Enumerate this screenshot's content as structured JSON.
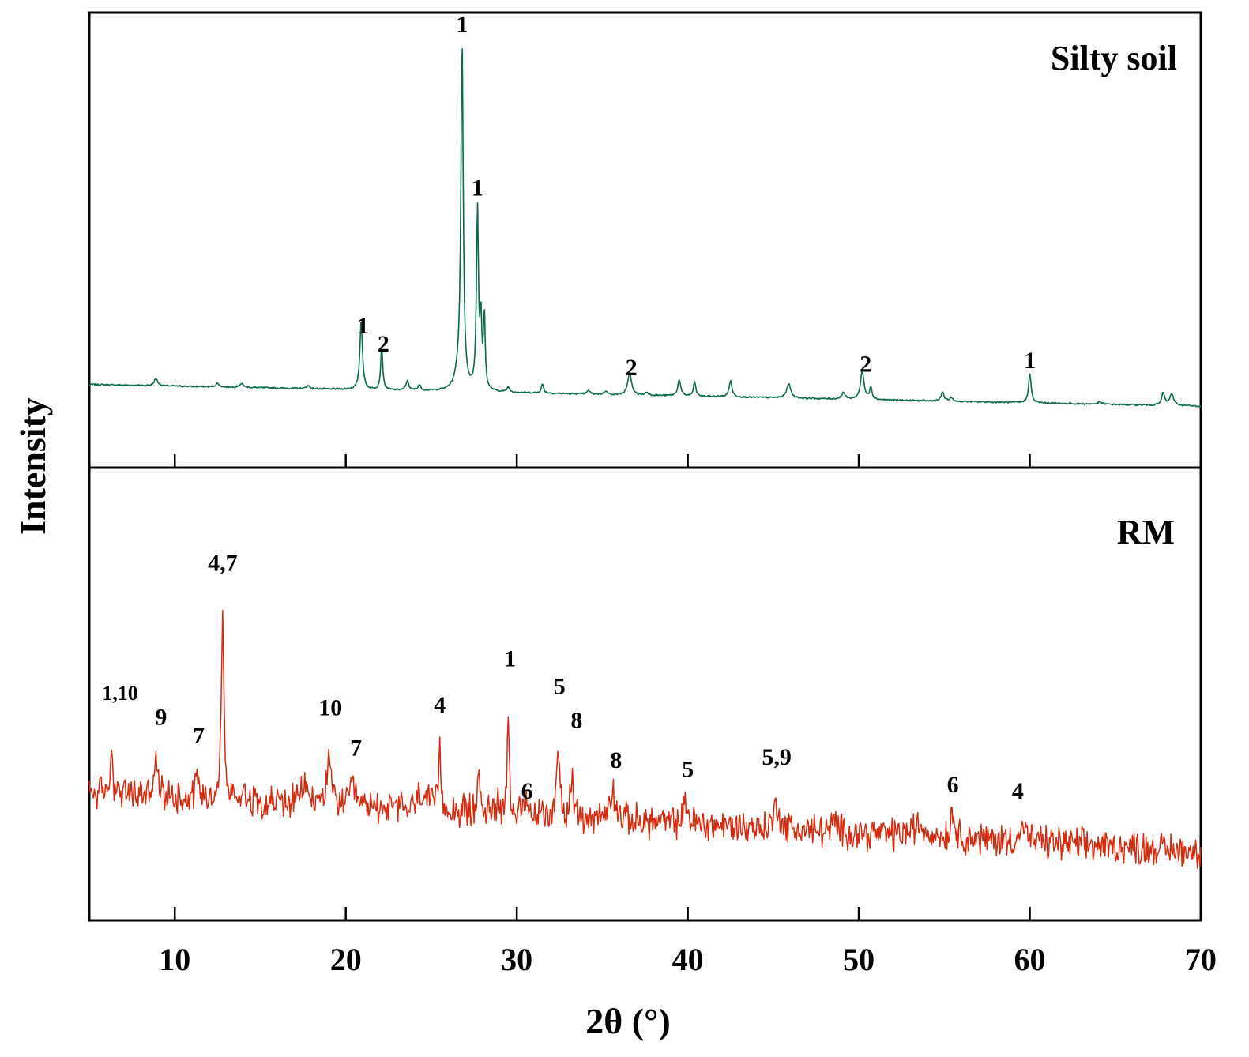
{
  "chart_data": {
    "type": "line",
    "xlabel": "2θ (°)",
    "ylabel": "Intensity",
    "xlim": [
      5,
      70
    ],
    "x_ticks": [
      10,
      20,
      30,
      40,
      50,
      60,
      70
    ],
    "panels": [
      {
        "name": "Silty soil",
        "title": "Silty soil",
        "color": "#0b6b45",
        "ylim": [
          0,
          100
        ],
        "baseline_start": 9,
        "baseline_end": 3,
        "peaks": [
          {
            "x": 8.9,
            "h": 2,
            "w": 0.12
          },
          {
            "x": 12.5,
            "h": 1,
            "w": 0.12
          },
          {
            "x": 13.9,
            "h": 1,
            "w": 0.15
          },
          {
            "x": 17.8,
            "h": 0.8,
            "w": 0.12
          },
          {
            "x": 20.9,
            "h": 19,
            "w": 0.09
          },
          {
            "x": 22.1,
            "h": 12,
            "w": 0.07
          },
          {
            "x": 23.6,
            "h": 2.5,
            "w": 0.1
          },
          {
            "x": 24.3,
            "h": 1.5,
            "w": 0.1
          },
          {
            "x": 26.6,
            "h": 4,
            "w": 0.25
          },
          {
            "x": 26.8,
            "h": 95,
            "w": 0.08
          },
          {
            "x": 27.7,
            "h": 50,
            "w": 0.07
          },
          {
            "x": 27.9,
            "h": 18,
            "w": 0.06
          },
          {
            "x": 28.1,
            "h": 21,
            "w": 0.06
          },
          {
            "x": 29.5,
            "h": 1.5,
            "w": 0.08
          },
          {
            "x": 31.5,
            "h": 2.5,
            "w": 0.08
          },
          {
            "x": 34.2,
            "h": 1,
            "w": 0.1
          },
          {
            "x": 35.2,
            "h": 1,
            "w": 0.1
          },
          {
            "x": 36.6,
            "h": 6.5,
            "w": 0.12
          },
          {
            "x": 37.6,
            "h": 0.8,
            "w": 0.1
          },
          {
            "x": 39.5,
            "h": 4.5,
            "w": 0.1
          },
          {
            "x": 40.4,
            "h": 4,
            "w": 0.08
          },
          {
            "x": 42.5,
            "h": 4.5,
            "w": 0.1
          },
          {
            "x": 45.9,
            "h": 4,
            "w": 0.14
          },
          {
            "x": 49.1,
            "h": 1.8,
            "w": 0.12
          },
          {
            "x": 50.2,
            "h": 8,
            "w": 0.12
          },
          {
            "x": 50.7,
            "h": 3.5,
            "w": 0.08
          },
          {
            "x": 54.9,
            "h": 2.5,
            "w": 0.1
          },
          {
            "x": 55.4,
            "h": 1,
            "w": 0.1
          },
          {
            "x": 60.0,
            "h": 8,
            "w": 0.09
          },
          {
            "x": 64.1,
            "h": 0.6,
            "w": 0.15
          },
          {
            "x": 67.8,
            "h": 3.5,
            "w": 0.1
          },
          {
            "x": 68.3,
            "h": 3,
            "w": 0.15
          }
        ],
        "annotations": [
          {
            "x": 21.0,
            "level": 23,
            "label": "1"
          },
          {
            "x": 22.2,
            "level": 18,
            "label": "2"
          },
          {
            "x": 26.8,
            "level": 106,
            "label": "1"
          },
          {
            "x": 27.7,
            "level": 61,
            "label": "1"
          },
          {
            "x": 36.7,
            "level": 11.5,
            "label": "2"
          },
          {
            "x": 50.4,
            "level": 12.5,
            "label": "2"
          },
          {
            "x": 60.0,
            "level": 13.5,
            "label": "1"
          }
        ]
      },
      {
        "name": "RM",
        "title": "RM",
        "color": "#d42c0e",
        "ylim": [
          0,
          100
        ],
        "baseline_start": 32,
        "baseline_end": 13,
        "noise_amplitude": 4.2,
        "peaks": [
          {
            "x": 6.3,
            "h": 12,
            "w": 0.1
          },
          {
            "x": 8.9,
            "h": 10,
            "w": 0.15
          },
          {
            "x": 11.3,
            "h": 8,
            "w": 0.12
          },
          {
            "x": 12.8,
            "h": 64,
            "w": 0.08
          },
          {
            "x": 14.0,
            "h": 4,
            "w": 0.15
          },
          {
            "x": 17.6,
            "h": 6,
            "w": 0.2
          },
          {
            "x": 19.0,
            "h": 12,
            "w": 0.2
          },
          {
            "x": 20.4,
            "h": 6,
            "w": 0.15
          },
          {
            "x": 24.5,
            "h": 6,
            "w": 0.3
          },
          {
            "x": 25.5,
            "h": 18,
            "w": 0.09
          },
          {
            "x": 27.8,
            "h": 12,
            "w": 0.1
          },
          {
            "x": 28.9,
            "h": 6,
            "w": 0.1
          },
          {
            "x": 29.5,
            "h": 34,
            "w": 0.07
          },
          {
            "x": 30.6,
            "h": 3,
            "w": 0.1
          },
          {
            "x": 32.4,
            "h": 26,
            "w": 0.1
          },
          {
            "x": 33.2,
            "h": 14,
            "w": 0.08
          },
          {
            "x": 35.6,
            "h": 10,
            "w": 0.2
          },
          {
            "x": 39.9,
            "h": 7,
            "w": 0.15
          },
          {
            "x": 45.2,
            "h": 9,
            "w": 0.15
          },
          {
            "x": 48.6,
            "h": 3,
            "w": 0.15
          },
          {
            "x": 53.5,
            "h": 3,
            "w": 0.5
          },
          {
            "x": 55.5,
            "h": 8,
            "w": 0.15
          },
          {
            "x": 59.6,
            "h": 5,
            "w": 0.2
          }
        ],
        "annotations": [
          {
            "x": 6.8,
            "level": 62,
            "label": "1,10",
            "small": true
          },
          {
            "x": 9.2,
            "level": 54,
            "label": "9"
          },
          {
            "x": 11.4,
            "level": 48,
            "label": "7"
          },
          {
            "x": 12.8,
            "level": 104,
            "label": "4,7"
          },
          {
            "x": 19.1,
            "level": 57,
            "label": "10"
          },
          {
            "x": 20.6,
            "level": 44,
            "label": "7"
          },
          {
            "x": 25.5,
            "level": 58,
            "label": "4"
          },
          {
            "x": 29.6,
            "level": 73,
            "label": "1"
          },
          {
            "x": 30.6,
            "level": 30,
            "label": "6"
          },
          {
            "x": 32.5,
            "level": 64,
            "label": "5"
          },
          {
            "x": 33.5,
            "level": 53,
            "label": "8"
          },
          {
            "x": 35.8,
            "level": 40,
            "label": "8"
          },
          {
            "x": 40.0,
            "level": 37,
            "label": "5"
          },
          {
            "x": 45.2,
            "level": 41,
            "label": "5,9"
          },
          {
            "x": 55.5,
            "level": 32,
            "label": "6"
          },
          {
            "x": 59.3,
            "level": 30,
            "label": "4"
          }
        ]
      }
    ]
  }
}
